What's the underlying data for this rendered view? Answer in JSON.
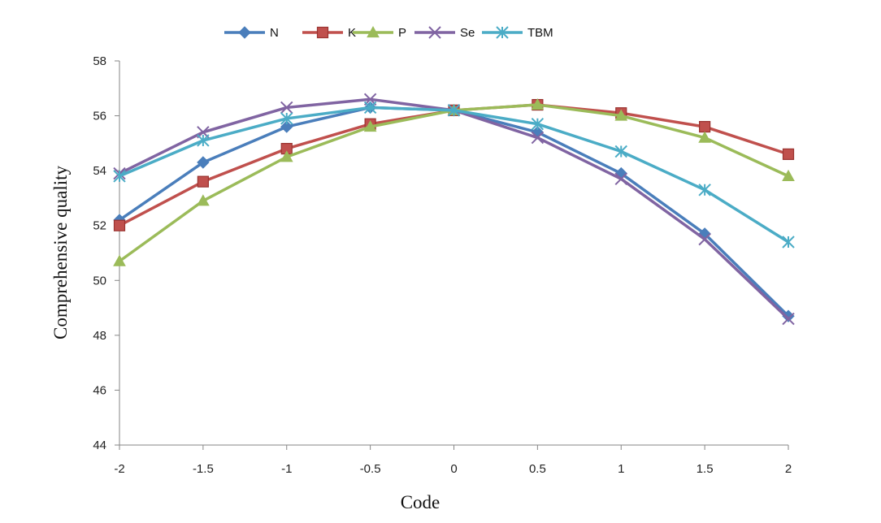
{
  "chart_data": {
    "type": "line",
    "title": "",
    "xlabel": "Code",
    "ylabel": "Comprehensive quality",
    "x": [
      -2,
      -1.5,
      -1,
      -0.5,
      0,
      0.5,
      1,
      1.5,
      2
    ],
    "x_tick_labels": [
      "-2",
      "-1.5",
      "-1",
      "-0.5",
      "0",
      "0.5",
      "1",
      "1.5",
      "2"
    ],
    "ylim": [
      44,
      58
    ],
    "y_ticks": [
      44,
      46,
      48,
      50,
      52,
      54,
      56,
      58
    ],
    "y_tick_labels": [
      "44",
      "46",
      "48",
      "50",
      "52",
      "54",
      "56",
      "58"
    ],
    "grid": false,
    "legend_position": "top",
    "series": [
      {
        "name": "N",
        "color": "#4a7ebb",
        "marker": "diamond",
        "values": [
          52.2,
          54.3,
          55.6,
          56.3,
          56.2,
          55.4,
          53.9,
          51.7,
          48.7
        ]
      },
      {
        "name": "K",
        "color": "#c0504d",
        "marker": "square",
        "values": [
          52.0,
          53.6,
          54.8,
          55.7,
          56.2,
          56.4,
          56.1,
          55.6,
          54.6
        ]
      },
      {
        "name": "P",
        "color": "#9bbb59",
        "marker": "triangle",
        "values": [
          50.7,
          52.9,
          54.5,
          55.6,
          56.2,
          56.4,
          56.0,
          55.2,
          53.8
        ]
      },
      {
        "name": "Se",
        "color": "#8064a2",
        "marker": "x",
        "values": [
          53.9,
          55.4,
          56.3,
          56.6,
          56.2,
          55.2,
          53.7,
          51.5,
          48.6
        ]
      },
      {
        "name": "TBM",
        "color": "#4bacc6",
        "marker": "star",
        "values": [
          53.8,
          55.1,
          55.9,
          56.3,
          56.2,
          55.7,
          54.7,
          53.3,
          51.4
        ]
      }
    ]
  }
}
